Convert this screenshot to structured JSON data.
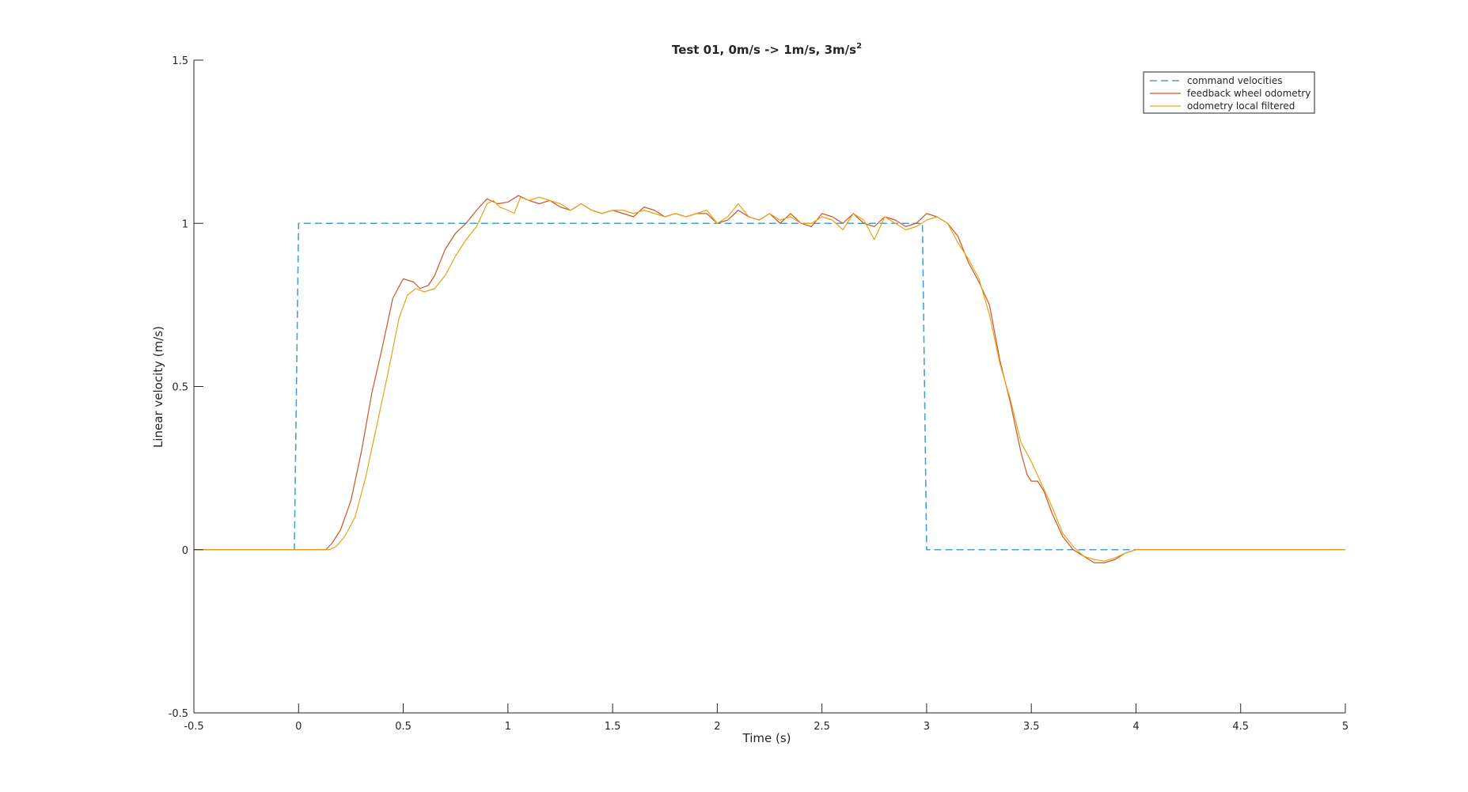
{
  "chart_data": {
    "type": "line",
    "title": "Test 01, 0m/s -> 1m/s, 3m/s",
    "title_superscript": "2",
    "xlabel": "Time (s)",
    "ylabel": "Linear velocity (m/s)",
    "xlim": [
      -0.5,
      5
    ],
    "ylim": [
      -0.5,
      1.5
    ],
    "xticks": [
      -0.5,
      0,
      0.5,
      1,
      1.5,
      2,
      2.5,
      3,
      3.5,
      4,
      4.5,
      5
    ],
    "xtick_labels": [
      "-0.5",
      "0",
      "0.5",
      "1",
      "1.5",
      "2",
      "2.5",
      "3",
      "3.5",
      "4",
      "4.5",
      "5"
    ],
    "yticks": [
      -0.5,
      0,
      0.5,
      1,
      1.5
    ],
    "ytick_labels": [
      "-0.5",
      "0",
      "0.5",
      "1",
      "1.5"
    ],
    "grid": false,
    "legend_position": "top-right",
    "series": [
      {
        "name": "command velocities",
        "color": "#4a9fd8",
        "dash": "dashed",
        "points": [
          [
            -0.5,
            0
          ],
          [
            -0.02,
            0
          ],
          [
            0.0,
            1
          ],
          [
            2.98,
            1
          ],
          [
            3.0,
            0
          ],
          [
            4.0,
            0
          ]
        ]
      },
      {
        "name": "feedback wheel odometry",
        "color": "#c8582a",
        "dash": "solid",
        "points": [
          [
            -0.5,
            0
          ],
          [
            0.0,
            0
          ],
          [
            0.13,
            0.0
          ],
          [
            0.16,
            0.02
          ],
          [
            0.2,
            0.06
          ],
          [
            0.25,
            0.15
          ],
          [
            0.3,
            0.3
          ],
          [
            0.35,
            0.48
          ],
          [
            0.4,
            0.62
          ],
          [
            0.45,
            0.77
          ],
          [
            0.5,
            0.83
          ],
          [
            0.55,
            0.82
          ],
          [
            0.58,
            0.8
          ],
          [
            0.62,
            0.81
          ],
          [
            0.65,
            0.84
          ],
          [
            0.7,
            0.92
          ],
          [
            0.75,
            0.97
          ],
          [
            0.8,
            1.0
          ],
          [
            0.85,
            1.04
          ],
          [
            0.9,
            1.075
          ],
          [
            0.95,
            1.06
          ],
          [
            1.0,
            1.065
          ],
          [
            1.05,
            1.085
          ],
          [
            1.1,
            1.07
          ],
          [
            1.15,
            1.06
          ],
          [
            1.2,
            1.07
          ],
          [
            1.25,
            1.05
          ],
          [
            1.3,
            1.04
          ],
          [
            1.35,
            1.06
          ],
          [
            1.4,
            1.04
          ],
          [
            1.45,
            1.03
          ],
          [
            1.5,
            1.04
          ],
          [
            1.55,
            1.03
          ],
          [
            1.6,
            1.02
          ],
          [
            1.65,
            1.05
          ],
          [
            1.7,
            1.04
          ],
          [
            1.75,
            1.02
          ],
          [
            1.8,
            1.03
          ],
          [
            1.85,
            1.02
          ],
          [
            1.9,
            1.03
          ],
          [
            1.95,
            1.03
          ],
          [
            2.0,
            1.0
          ],
          [
            2.05,
            1.01
          ],
          [
            2.1,
            1.04
          ],
          [
            2.15,
            1.02
          ],
          [
            2.2,
            1.01
          ],
          [
            2.25,
            1.03
          ],
          [
            2.3,
            1.0
          ],
          [
            2.35,
            1.03
          ],
          [
            2.4,
            1.0
          ],
          [
            2.45,
            0.99
          ],
          [
            2.5,
            1.03
          ],
          [
            2.55,
            1.02
          ],
          [
            2.6,
            1.0
          ],
          [
            2.65,
            1.03
          ],
          [
            2.7,
            1.0
          ],
          [
            2.75,
            0.99
          ],
          [
            2.8,
            1.02
          ],
          [
            2.85,
            1.01
          ],
          [
            2.9,
            0.99
          ],
          [
            2.95,
            1.0
          ],
          [
            3.0,
            1.03
          ],
          [
            3.05,
            1.02
          ],
          [
            3.1,
            1.0
          ],
          [
            3.15,
            0.96
          ],
          [
            3.2,
            0.88
          ],
          [
            3.25,
            0.82
          ],
          [
            3.3,
            0.75
          ],
          [
            3.35,
            0.58
          ],
          [
            3.4,
            0.45
          ],
          [
            3.45,
            0.3
          ],
          [
            3.48,
            0.23
          ],
          [
            3.5,
            0.21
          ],
          [
            3.53,
            0.21
          ],
          [
            3.56,
            0.18
          ],
          [
            3.6,
            0.11
          ],
          [
            3.65,
            0.04
          ],
          [
            3.7,
            0.0
          ],
          [
            3.75,
            -0.02
          ],
          [
            3.8,
            -0.04
          ],
          [
            3.85,
            -0.04
          ],
          [
            3.9,
            -0.03
          ],
          [
            3.95,
            -0.01
          ],
          [
            4.0,
            0.0
          ],
          [
            5.0,
            0.0
          ]
        ]
      },
      {
        "name": "odometry local filtered",
        "color": "#e8a317",
        "dash": "solid",
        "points": [
          [
            -0.5,
            0
          ],
          [
            0.0,
            0
          ],
          [
            0.15,
            0.0
          ],
          [
            0.18,
            0.01
          ],
          [
            0.22,
            0.04
          ],
          [
            0.27,
            0.1
          ],
          [
            0.32,
            0.22
          ],
          [
            0.38,
            0.4
          ],
          [
            0.43,
            0.55
          ],
          [
            0.48,
            0.71
          ],
          [
            0.52,
            0.78
          ],
          [
            0.56,
            0.8
          ],
          [
            0.6,
            0.79
          ],
          [
            0.65,
            0.8
          ],
          [
            0.7,
            0.84
          ],
          [
            0.75,
            0.9
          ],
          [
            0.8,
            0.95
          ],
          [
            0.85,
            0.99
          ],
          [
            0.9,
            1.06
          ],
          [
            0.93,
            1.07
          ],
          [
            0.96,
            1.05
          ],
          [
            1.0,
            1.04
          ],
          [
            1.03,
            1.03
          ],
          [
            1.06,
            1.08
          ],
          [
            1.1,
            1.07
          ],
          [
            1.15,
            1.08
          ],
          [
            1.2,
            1.07
          ],
          [
            1.25,
            1.06
          ],
          [
            1.3,
            1.04
          ],
          [
            1.35,
            1.06
          ],
          [
            1.4,
            1.04
          ],
          [
            1.45,
            1.03
          ],
          [
            1.5,
            1.04
          ],
          [
            1.55,
            1.04
          ],
          [
            1.6,
            1.03
          ],
          [
            1.65,
            1.04
          ],
          [
            1.7,
            1.03
          ],
          [
            1.75,
            1.02
          ],
          [
            1.8,
            1.03
          ],
          [
            1.85,
            1.02
          ],
          [
            1.9,
            1.03
          ],
          [
            1.95,
            1.04
          ],
          [
            2.0,
            1.0
          ],
          [
            2.05,
            1.02
          ],
          [
            2.1,
            1.06
          ],
          [
            2.15,
            1.02
          ],
          [
            2.2,
            1.01
          ],
          [
            2.25,
            1.03
          ],
          [
            2.3,
            1.01
          ],
          [
            2.35,
            1.02
          ],
          [
            2.4,
            1.0
          ],
          [
            2.45,
            1.0
          ],
          [
            2.5,
            1.02
          ],
          [
            2.55,
            1.01
          ],
          [
            2.6,
            0.98
          ],
          [
            2.65,
            1.03
          ],
          [
            2.7,
            1.01
          ],
          [
            2.75,
            0.95
          ],
          [
            2.8,
            1.02
          ],
          [
            2.85,
            1.0
          ],
          [
            2.9,
            0.98
          ],
          [
            2.95,
            0.99
          ],
          [
            3.0,
            1.01
          ],
          [
            3.05,
            1.02
          ],
          [
            3.1,
            1.0
          ],
          [
            3.15,
            0.94
          ],
          [
            3.2,
            0.89
          ],
          [
            3.25,
            0.83
          ],
          [
            3.3,
            0.72
          ],
          [
            3.35,
            0.57
          ],
          [
            3.4,
            0.46
          ],
          [
            3.45,
            0.33
          ],
          [
            3.5,
            0.27
          ],
          [
            3.55,
            0.2
          ],
          [
            3.6,
            0.13
          ],
          [
            3.65,
            0.05
          ],
          [
            3.7,
            0.01
          ],
          [
            3.75,
            -0.02
          ],
          [
            3.8,
            -0.03
          ],
          [
            3.85,
            -0.035
          ],
          [
            3.9,
            -0.025
          ],
          [
            3.95,
            -0.01
          ],
          [
            4.0,
            0.0
          ],
          [
            5.0,
            0.0
          ]
        ]
      }
    ]
  }
}
